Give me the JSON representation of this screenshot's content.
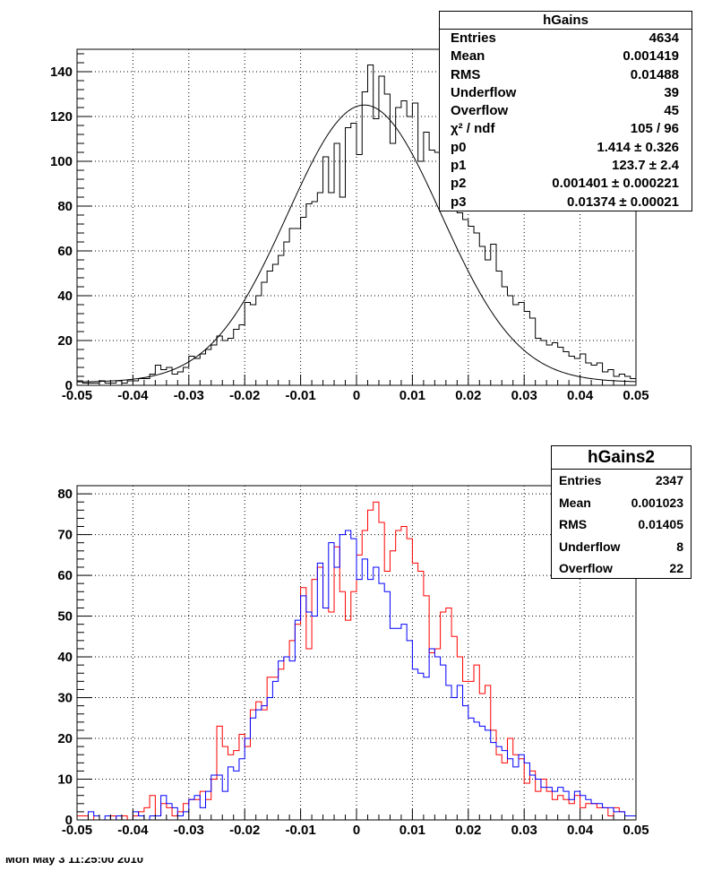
{
  "chart_data": [
    {
      "type": "histogram",
      "title": "hGains",
      "xlim": [
        -0.05,
        0.05
      ],
      "ylim": [
        0,
        150
      ],
      "x_ticks": [
        "-0.05",
        "-0.04",
        "-0.03",
        "-0.02",
        "-0.01",
        "0",
        "0.01",
        "0.02",
        "0.03",
        "0.04",
        "0.05"
      ],
      "y_ticks": [
        "0",
        "20",
        "40",
        "60",
        "80",
        "100",
        "120",
        "140"
      ],
      "grid": true,
      "bins": 100,
      "series": [
        {
          "line_color": "#000000",
          "values": [
            2,
            1,
            1,
            1,
            2,
            1,
            1,
            2,
            1,
            2,
            2,
            3,
            3,
            5,
            9,
            7,
            8,
            5,
            6,
            8,
            13,
            12,
            14,
            16,
            18,
            22,
            20,
            21,
            25,
            27,
            37,
            36,
            40,
            46,
            51,
            54,
            58,
            64,
            70,
            70,
            75,
            81,
            82,
            86,
            102,
            86,
            108,
            84,
            115,
            117,
            103,
            131,
            143,
            119,
            138,
            130,
            108,
            124,
            127,
            120,
            126,
            100,
            113,
            105,
            104,
            92,
            87,
            83,
            77,
            74,
            71,
            68,
            62,
            56,
            63,
            51,
            44,
            40,
            36,
            37,
            33,
            30,
            21,
            20,
            18,
            19,
            17,
            15,
            13,
            12,
            14,
            10,
            9,
            10,
            6,
            7,
            4,
            5,
            4,
            3
          ]
        },
        {
          "type": "line",
          "line_color": "#000000",
          "fit": "gaus+pol0",
          "p0": 1.414,
          "p1": 123.7,
          "p2": 0.001401,
          "p3": 0.01374
        }
      ]
    },
    {
      "type": "histogram",
      "title": "hGains2",
      "xlim": [
        -0.05,
        0.05
      ],
      "ylim": [
        0,
        82
      ],
      "x_ticks": [
        "-0.05",
        "-0.04",
        "-0.03",
        "-0.02",
        "-0.01",
        "0",
        "0.01",
        "0.02",
        "0.03",
        "0.04",
        "0.05"
      ],
      "y_ticks": [
        "0",
        "10",
        "20",
        "30",
        "40",
        "50",
        "60",
        "70",
        "80"
      ],
      "grid": true,
      "bins": 100,
      "series": [
        {
          "line_color": "#ff0000",
          "values": [
            1,
            1,
            0,
            1,
            0,
            0,
            1,
            0,
            1,
            0,
            1,
            2,
            3,
            6,
            1,
            4,
            3,
            1,
            2,
            4,
            5,
            5,
            7,
            5,
            10,
            23,
            18,
            16,
            17,
            21,
            18,
            27,
            29,
            27,
            35,
            35,
            37,
            40,
            44,
            48,
            57,
            42,
            59,
            62,
            52,
            51,
            67,
            56,
            49,
            56,
            65,
            71,
            76,
            78,
            73,
            61,
            66,
            71,
            72,
            69,
            63,
            61,
            55,
            41,
            42,
            51,
            52,
            45,
            40,
            34,
            34,
            38,
            31,
            33,
            22,
            16,
            14,
            20,
            16,
            15,
            9,
            12,
            7,
            10,
            7,
            5,
            6,
            5,
            4,
            6,
            3,
            4,
            4,
            3,
            3,
            1,
            3,
            2,
            1,
            1
          ]
        },
        {
          "line_color": "#0000ff",
          "values": [
            0,
            0,
            2,
            1,
            0,
            1,
            0,
            1,
            0,
            0,
            2,
            1,
            0,
            1,
            1,
            6,
            4,
            3,
            1,
            2,
            5,
            6,
            3,
            7,
            11,
            11,
            7,
            13,
            12,
            15,
            20,
            25,
            27,
            28,
            30,
            34,
            39,
            40,
            39,
            49,
            55,
            51,
            50,
            63,
            52,
            68,
            62,
            70,
            71,
            69,
            59,
            64,
            59,
            62,
            58,
            56,
            47,
            47,
            48,
            44,
            37,
            36,
            35,
            42,
            40,
            38,
            33,
            30,
            33,
            28,
            25,
            24,
            23,
            22,
            19,
            18,
            17,
            15,
            13,
            16,
            14,
            11,
            10,
            8,
            8,
            7,
            8,
            7,
            5,
            7,
            6,
            5,
            4,
            4,
            3,
            3,
            2,
            2,
            1,
            1
          ]
        }
      ]
    }
  ],
  "stats_box_1": {
    "title": "hGains",
    "rows": [
      {
        "label": "Entries",
        "value": "4634"
      },
      {
        "label": "Mean",
        "value": "0.001419"
      },
      {
        "label": "RMS",
        "value": "0.01488"
      },
      {
        "label": "Underflow",
        "value": "39"
      },
      {
        "label": "Overflow",
        "value": "45"
      },
      {
        "label": "χ² / ndf",
        "value": "105 / 96"
      },
      {
        "label": "p0",
        "value": "1.414 ± 0.326"
      },
      {
        "label": "p1",
        "value": "123.7 ± 2.4"
      },
      {
        "label": "p2",
        "value": "0.001401 ± 0.000221"
      },
      {
        "label": "p3",
        "value": "0.01374 ± 0.00021"
      }
    ]
  },
  "stats_box_2": {
    "title": "hGains2",
    "rows": [
      {
        "label": "Entries",
        "value": "2347"
      },
      {
        "label": "Mean",
        "value": "0.001023"
      },
      {
        "label": "RMS",
        "value": "0.01405"
      },
      {
        "label": "Underflow",
        "value": "8"
      },
      {
        "label": "Overflow",
        "value": "22"
      }
    ]
  },
  "footer": {
    "text": "Mon May  3 11:25:00 2010"
  }
}
